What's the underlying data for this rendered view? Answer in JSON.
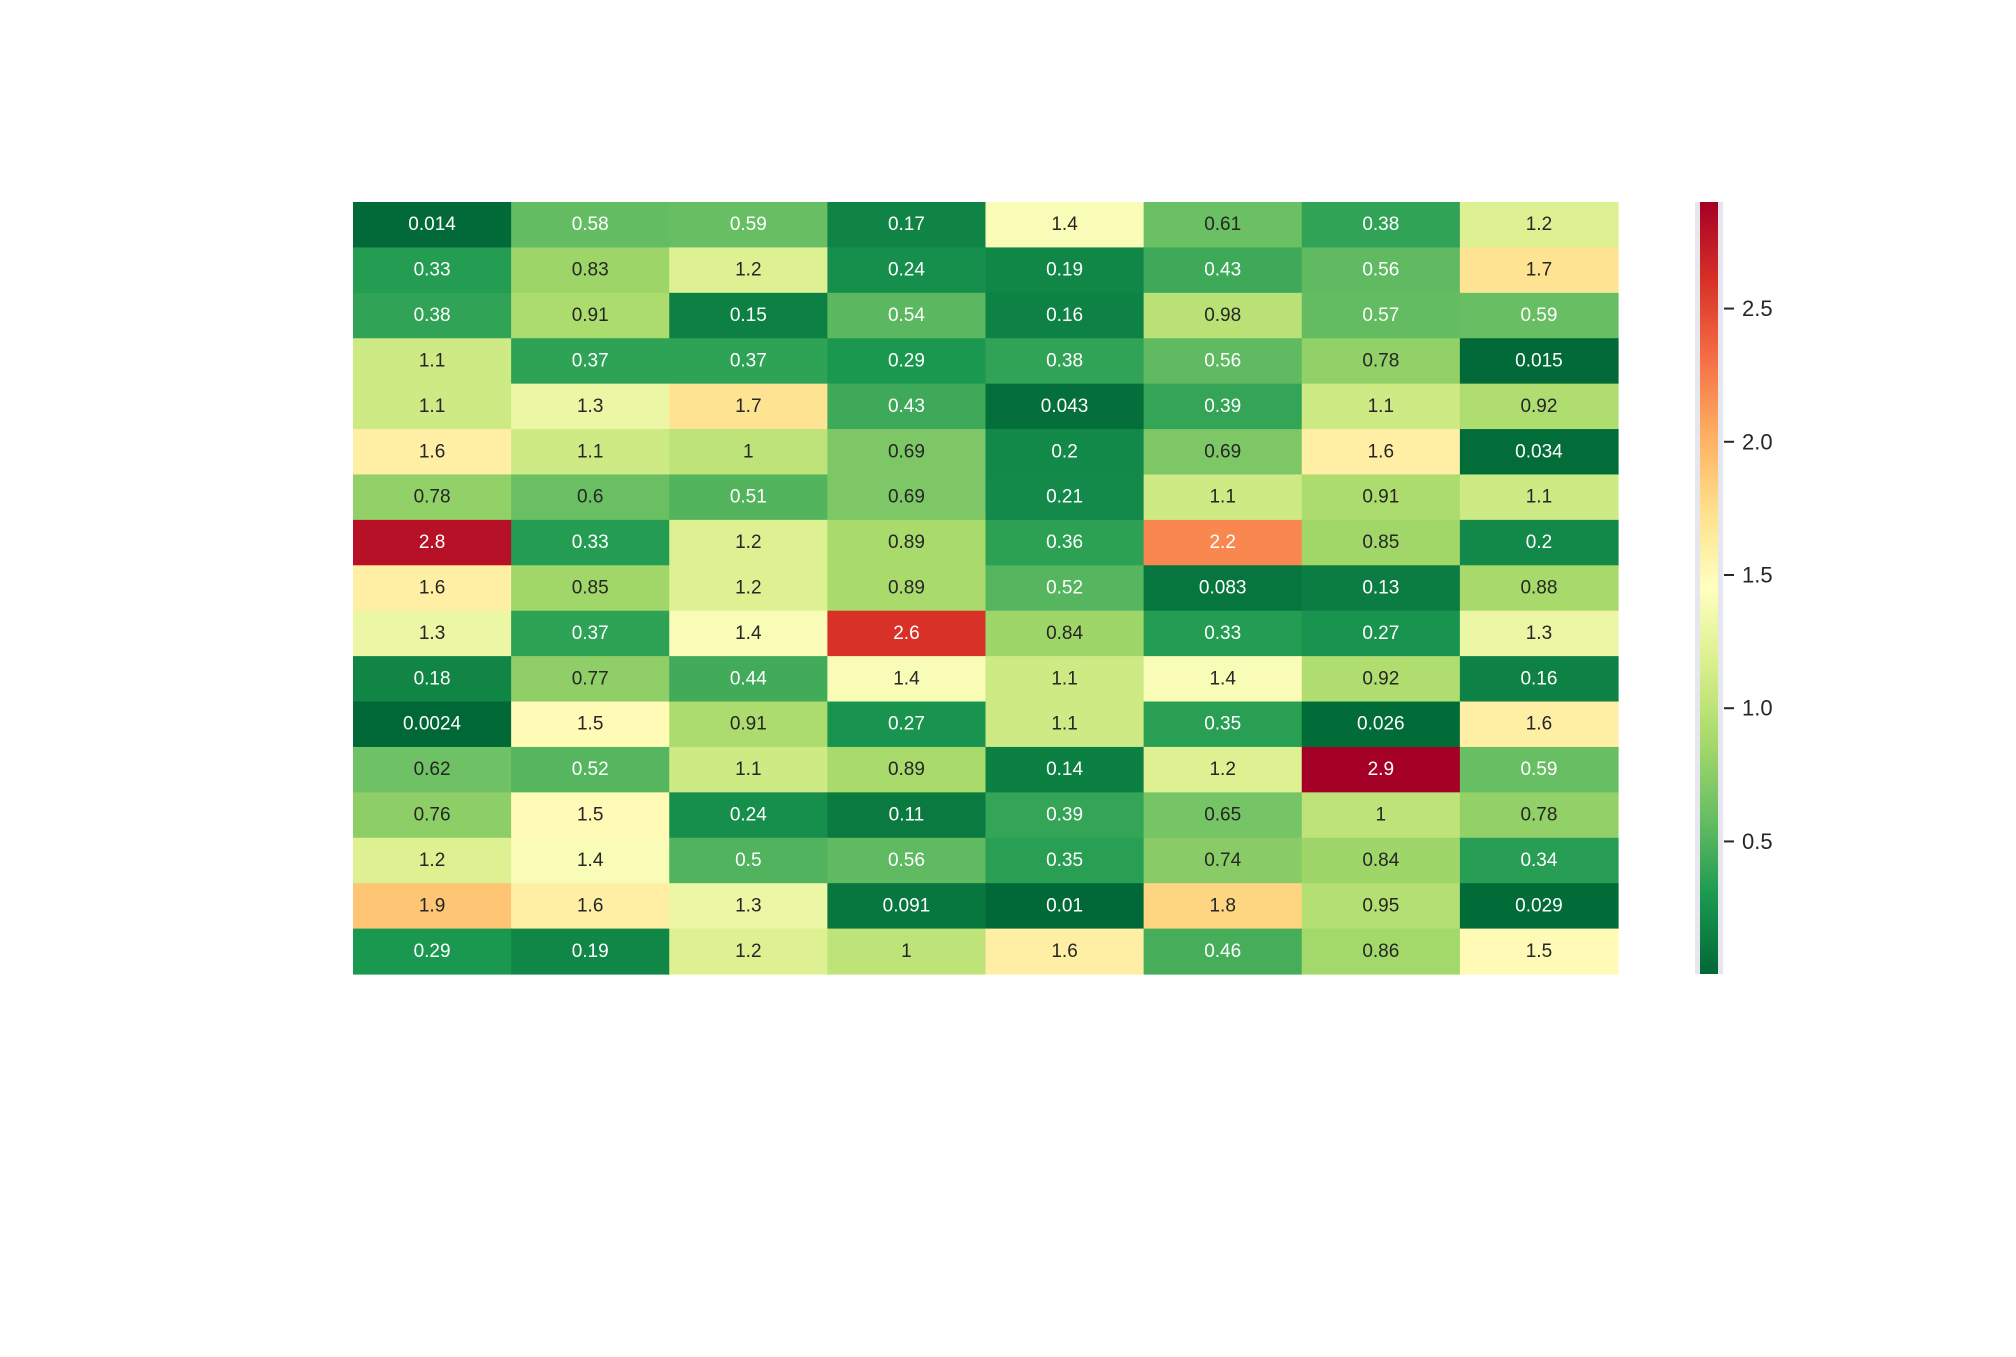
{
  "chart_data": {
    "type": "heatmap",
    "title": "",
    "xlabel": "",
    "ylabel": "",
    "colormap": "RdYlGn_r",
    "color_range": [
      0.0024,
      2.9
    ],
    "annotations_shown": true,
    "colorbar": {
      "placement": "right",
      "ticks": [
        0.5,
        1.0,
        1.5,
        2.0,
        2.5
      ],
      "tick_labels": [
        "0.5",
        "1.0",
        "1.5",
        "2.0",
        "2.5"
      ]
    },
    "values": [
      [
        0.014,
        0.58,
        0.59,
        0.17,
        1.4,
        0.61,
        0.38,
        1.2
      ],
      [
        0.33,
        0.83,
        1.2,
        0.24,
        0.19,
        0.43,
        0.56,
        1.7
      ],
      [
        0.38,
        0.91,
        0.15,
        0.54,
        0.16,
        0.98,
        0.57,
        0.59
      ],
      [
        1.1,
        0.37,
        0.37,
        0.29,
        0.38,
        0.56,
        0.78,
        0.015
      ],
      [
        1.1,
        1.3,
        1.7,
        0.43,
        0.043,
        0.39,
        1.1,
        0.92
      ],
      [
        1.6,
        1.1,
        1,
        0.69,
        0.2,
        0.69,
        1.6,
        0.034
      ],
      [
        0.78,
        0.6,
        0.51,
        0.69,
        0.21,
        1.1,
        0.91,
        1.1
      ],
      [
        2.8,
        0.33,
        1.2,
        0.89,
        0.36,
        2.2,
        0.85,
        0.2
      ],
      [
        1.6,
        0.85,
        1.2,
        0.89,
        0.52,
        0.083,
        0.13,
        0.88
      ],
      [
        1.3,
        0.37,
        1.4,
        2.6,
        0.84,
        0.33,
        0.27,
        1.3
      ],
      [
        0.18,
        0.77,
        0.44,
        1.4,
        1.1,
        1.4,
        0.92,
        0.16
      ],
      [
        0.0024,
        1.5,
        0.91,
        0.27,
        1.1,
        0.35,
        0.026,
        1.6
      ],
      [
        0.62,
        0.52,
        1.1,
        0.89,
        0.14,
        1.2,
        2.9,
        0.59
      ],
      [
        0.76,
        1.5,
        0.24,
        0.11,
        0.39,
        0.65,
        1,
        0.78
      ],
      [
        1.2,
        1.4,
        0.5,
        0.56,
        0.35,
        0.74,
        0.84,
        0.34
      ],
      [
        1.9,
        1.6,
        1.3,
        0.091,
        0.01,
        1.8,
        0.95,
        0.029
      ],
      [
        0.29,
        0.19,
        1.2,
        1,
        1.6,
        0.46,
        0.86,
        1.5
      ]
    ]
  }
}
